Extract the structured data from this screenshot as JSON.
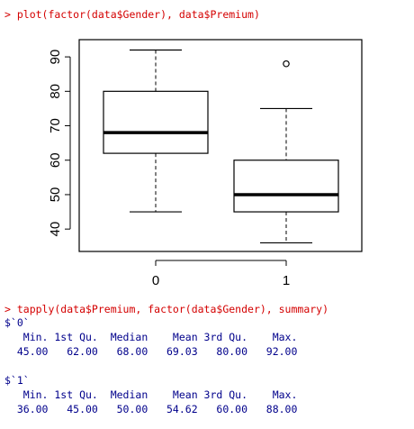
{
  "console": {
    "command1": "> plot(factor(data$Gender), data$Premium)",
    "command2": "> tapply(data$Premium, factor(data$Gender), summary)",
    "summary_header": "   Min. 1st Qu.  Median    Mean 3rd Qu.    Max. ",
    "group0": {
      "label": "$`0`",
      "values_line": "  45.00   62.00   68.00   69.03   80.00   92.00 "
    },
    "group1": {
      "label": "$`1`",
      "values_line": "  36.00   45.00   50.00   54.62   60.00   88.00 "
    }
  },
  "colors": {
    "command": "#d40000",
    "output": "#00008b",
    "plot": "#000000"
  },
  "chart_data": {
    "type": "boxplot",
    "categories": [
      "0",
      "1"
    ],
    "boxes": [
      {
        "category": "0",
        "whisker_low": 45,
        "q1": 62,
        "median": 68,
        "q3": 80,
        "whisker_high": 92,
        "outliers": []
      },
      {
        "category": "1",
        "whisker_low": 36,
        "q1": 45,
        "median": 50,
        "q3": 60,
        "whisker_high": 75,
        "outliers": [
          88
        ]
      }
    ],
    "yticks": [
      40,
      50,
      60,
      70,
      80,
      90
    ],
    "ylim": [
      33.5,
      95
    ],
    "title": "",
    "xlabel": "",
    "ylabel": ""
  }
}
